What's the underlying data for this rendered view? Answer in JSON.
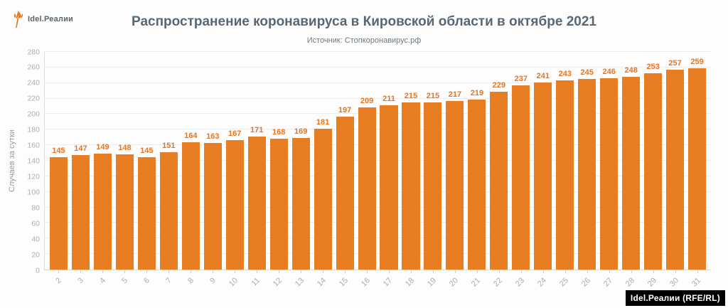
{
  "header": {
    "logo_text": "Idel.Реалии",
    "title": "Распространение коронавируса в Кировской области в октябре 2021",
    "subtitle": "Источник: Стопкоронавирус.рф"
  },
  "chart_data": {
    "type": "bar",
    "categories": [
      2,
      3,
      4,
      5,
      6,
      7,
      8,
      9,
      10,
      11,
      12,
      13,
      14,
      15,
      16,
      17,
      18,
      19,
      20,
      21,
      22,
      23,
      24,
      25,
      26,
      27,
      28,
      29,
      30,
      31
    ],
    "values": [
      145,
      147,
      149,
      148,
      145,
      151,
      164,
      163,
      167,
      171,
      168,
      169,
      181,
      197,
      209,
      211,
      215,
      215,
      217,
      219,
      229,
      237,
      241,
      243,
      245,
      246,
      248,
      253,
      257,
      259
    ],
    "title": "Распространение коронавируса в Кировской области в октябре 2021",
    "xlabel": "",
    "ylabel": "Случаев за сутки",
    "ylim": [
      0,
      280
    ],
    "yticks": [
      0,
      20,
      40,
      60,
      80,
      100,
      120,
      140,
      160,
      180,
      200,
      220,
      240,
      260,
      280
    ],
    "grid": true,
    "legend": false,
    "bar_labels_shown": true
  },
  "colors": {
    "bar": "#E87E23",
    "bar_value_label": "#E87420",
    "title_text": "#5B6770",
    "axis_text": "#A9AEB4",
    "gridline": "#ECECEC",
    "badge_bg": "#000000",
    "badge_text": "#FFFFFF",
    "logo_orange": "#E87722"
  },
  "footer": {
    "badge": "Idel.Реалии (RFE/RL)"
  }
}
